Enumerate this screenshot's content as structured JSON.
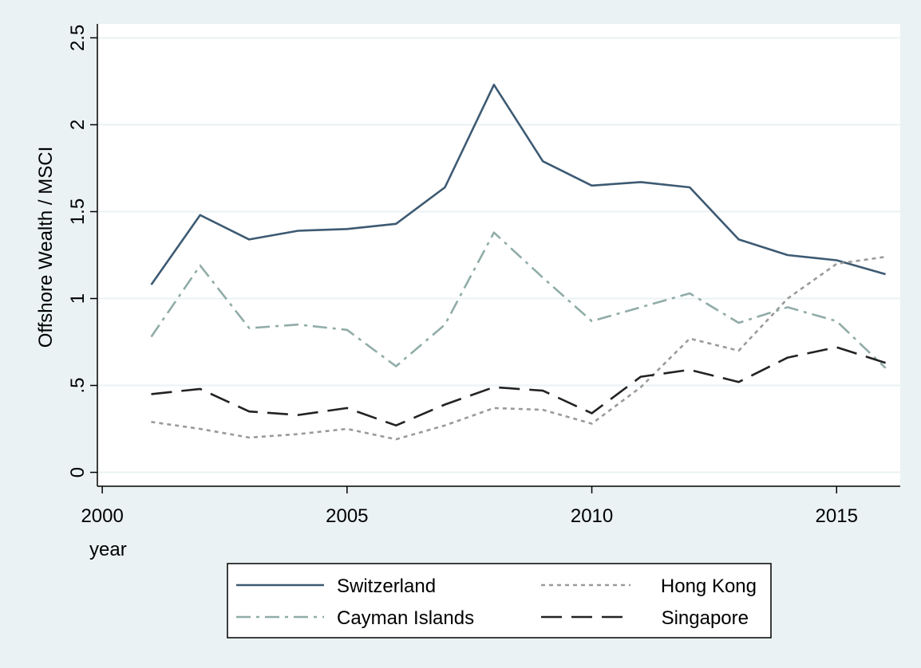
{
  "chart_data": {
    "type": "line",
    "title": "",
    "xlabel": "year",
    "ylabel": "Offshore Wealth / MSCI",
    "xlim": [
      1999.9,
      2016.3
    ],
    "ylim": [
      -0.08,
      2.58
    ],
    "xticks": [
      2000,
      2005,
      2010,
      2015
    ],
    "xtick_labels": [
      "2000",
      "2005",
      "2010",
      "2015"
    ],
    "yticks": [
      0,
      0.5,
      1,
      1.5,
      2,
      2.5
    ],
    "ytick_labels": [
      "0",
      ".5",
      "1",
      "1.5",
      "2",
      "2.5"
    ],
    "grid": true,
    "legend_position": "bottom",
    "x": [
      2001,
      2002,
      2003,
      2004,
      2005,
      2006,
      2007,
      2008,
      2009,
      2010,
      2011,
      2012,
      2013,
      2014,
      2015,
      2016
    ],
    "series": [
      {
        "name": "Switzerland",
        "color": "#3d5a73",
        "style": "solid",
        "values": [
          1.08,
          1.48,
          1.34,
          1.39,
          1.4,
          1.43,
          1.64,
          2.23,
          1.79,
          1.65,
          1.67,
          1.64,
          1.34,
          1.25,
          1.22,
          1.14
        ]
      },
      {
        "name": "Hong Kong",
        "color": "#9a9a9a",
        "style": "dotted",
        "values": [
          0.29,
          0.25,
          0.2,
          0.22,
          0.25,
          0.19,
          0.27,
          0.37,
          0.36,
          0.28,
          0.49,
          0.77,
          0.7,
          1.0,
          1.2,
          1.24
        ]
      },
      {
        "name": "Cayman Islands",
        "color": "#90aca8",
        "style": "dashdot",
        "values": [
          0.78,
          1.19,
          0.83,
          0.85,
          0.82,
          0.61,
          0.85,
          1.38,
          1.12,
          0.87,
          0.95,
          1.03,
          0.86,
          0.95,
          0.87,
          0.6
        ]
      },
      {
        "name": "Singapore",
        "color": "#222222",
        "style": "longdash",
        "values": [
          0.45,
          0.48,
          0.35,
          0.33,
          0.37,
          0.27,
          0.39,
          0.49,
          0.47,
          0.34,
          0.55,
          0.59,
          0.52,
          0.66,
          0.72,
          0.63
        ]
      }
    ]
  }
}
